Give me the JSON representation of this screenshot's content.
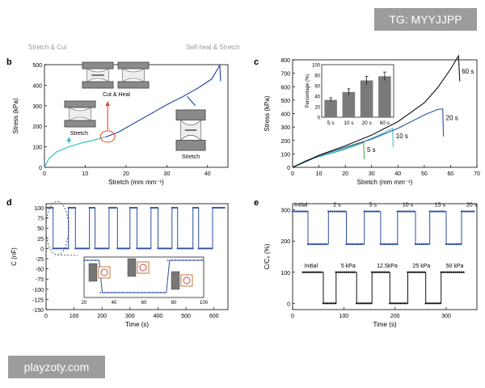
{
  "watermarks": {
    "top": "TG: MYYJJPP",
    "bottom": "playzoty.com"
  },
  "cropped_headers": {
    "left": "Stretch & Cut",
    "right": "Self-heal & Stretch"
  },
  "colors": {
    "blue": "#2b4ea2",
    "teal": "#3fc1c9",
    "orange": "#e2502b",
    "green": "#4caf50",
    "black": "#111111",
    "gray_bar": "#7a7a7a"
  },
  "chart_data": [
    {
      "panel": "b",
      "type": "line",
      "xlabel": "Stretch (mm mm⁻¹)",
      "ylabel": "Stress (kPa)",
      "xlim": [
        0,
        45
      ],
      "ylim": [
        0,
        500
      ],
      "xticks": [
        0,
        10,
        20,
        30,
        40
      ],
      "yticks": [
        0,
        100,
        200,
        300,
        400,
        500
      ],
      "series": [
        {
          "segment": "before-cut",
          "color": "#3fc1c9",
          "x": [
            0,
            1,
            3,
            6,
            9,
            12,
            15
          ],
          "y": [
            0,
            40,
            75,
            100,
            118,
            132,
            148
          ]
        },
        {
          "segment": "after-heal",
          "color": "#2b4ea2",
          "x": [
            15,
            18,
            22,
            26,
            30,
            34,
            38,
            41,
            42.5,
            43,
            43.2
          ],
          "y": [
            148,
            170,
            215,
            260,
            305,
            345,
            390,
            430,
            480,
            500,
            420
          ]
        }
      ],
      "annotations": [
        "Stretch",
        "Cut & Heal",
        "Stretch"
      ]
    },
    {
      "panel": "c",
      "type": "line",
      "xlabel": "Stretch (mm mm⁻¹)",
      "ylabel": "Stress (kPa)",
      "xlim": [
        0,
        70
      ],
      "ylim": [
        0,
        800
      ],
      "xticks": [
        0,
        10,
        20,
        30,
        40,
        50,
        60,
        70
      ],
      "yticks": [
        0,
        100,
        200,
        300,
        400,
        500,
        600,
        700,
        800
      ],
      "series": [
        {
          "name": "5 s",
          "color": "#4caf50",
          "x": [
            0,
            5,
            10,
            15,
            20,
            25,
            27,
            27.2
          ],
          "y": [
            0,
            50,
            80,
            105,
            135,
            170,
            185,
            60
          ]
        },
        {
          "name": "10 s",
          "color": "#3fc1c9",
          "x": [
            0,
            5,
            10,
            15,
            20,
            25,
            30,
            35,
            38,
            38.2
          ],
          "y": [
            0,
            50,
            80,
            108,
            140,
            175,
            215,
            260,
            290,
            150
          ]
        },
        {
          "name": "20 s",
          "color": "#2b4ea2",
          "x": [
            0,
            10,
            20,
            30,
            40,
            50,
            55,
            57,
            57.3
          ],
          "y": [
            0,
            85,
            150,
            210,
            290,
            390,
            430,
            435,
            230
          ]
        },
        {
          "name": "60 s",
          "color": "#111111",
          "x": [
            0,
            10,
            20,
            30,
            40,
            50,
            55,
            60,
            63,
            63.5
          ],
          "y": [
            0,
            90,
            160,
            240,
            340,
            480,
            590,
            730,
            830,
            640
          ]
        }
      ],
      "inset": {
        "type": "bar",
        "ylabel": "Percentage (%)",
        "ylim": [
          0,
          100
        ],
        "yticks": [
          0,
          20,
          40,
          60,
          80,
          100
        ],
        "categories": [
          "5 s",
          "10 s",
          "20 s",
          "60 s"
        ],
        "values": [
          33,
          48,
          70,
          78
        ],
        "errors": [
          4,
          6,
          8,
          8
        ]
      }
    },
    {
      "panel": "d",
      "type": "line",
      "xlabel": "Time (s)",
      "ylabel": "C (nF)",
      "xlim": [
        0,
        650
      ],
      "ylim": [
        -150,
        110
      ],
      "xticks": [
        0,
        100,
        200,
        300,
        400,
        500,
        600
      ],
      "yticks": [
        -150,
        -125,
        -100,
        -75,
        -50,
        -25,
        0,
        25,
        50,
        75,
        100
      ],
      "high": 100,
      "low": 0,
      "pulses_low": [
        [
          25,
          80
        ],
        [
          105,
          155
        ],
        [
          175,
          225
        ],
        [
          255,
          300
        ],
        [
          325,
          375
        ],
        [
          400,
          450
        ],
        [
          470,
          525
        ],
        [
          545,
          595
        ]
      ],
      "end": 640,
      "inset": {
        "xlim": [
          20,
          100
        ],
        "xticks": [
          20,
          40,
          60,
          80,
          100
        ],
        "high": 1,
        "low": 0,
        "drops": [
          [
            30,
            75
          ]
        ]
      }
    },
    {
      "panel": "e",
      "type": "line",
      "xlabel": "Time (s)",
      "ylabel": "C/C₀ (%)",
      "xlim": [
        0,
        360
      ],
      "ylim": [
        -20,
        320
      ],
      "xticks": [
        0,
        100,
        200,
        300
      ],
      "yticks": [
        0,
        100,
        200,
        300
      ],
      "series": [
        {
          "name": "blue",
          "color": "#2b4ea2",
          "high": 295,
          "low": 190,
          "low_intervals": [
            [
              30,
              70
            ],
            [
              105,
              140
            ],
            [
              172,
              205
            ],
            [
              240,
              268
            ],
            [
              300,
              330
            ]
          ],
          "end": 355,
          "labels": [
            "Initial",
            "2 s",
            "5 s",
            "10 s",
            "15 s",
            "20 s"
          ]
        },
        {
          "name": "black",
          "color": "#111111",
          "high": 100,
          "low": 0,
          "low_intervals": [
            [
              60,
              85
            ],
            [
              125,
              155
            ],
            [
              190,
              225
            ],
            [
              260,
              290
            ]
          ],
          "start": 20,
          "end": 335,
          "labels": [
            "Initial",
            "5 kPa",
            "12.5kPa",
            "25 kPa",
            "50 kPa"
          ]
        }
      ]
    }
  ]
}
